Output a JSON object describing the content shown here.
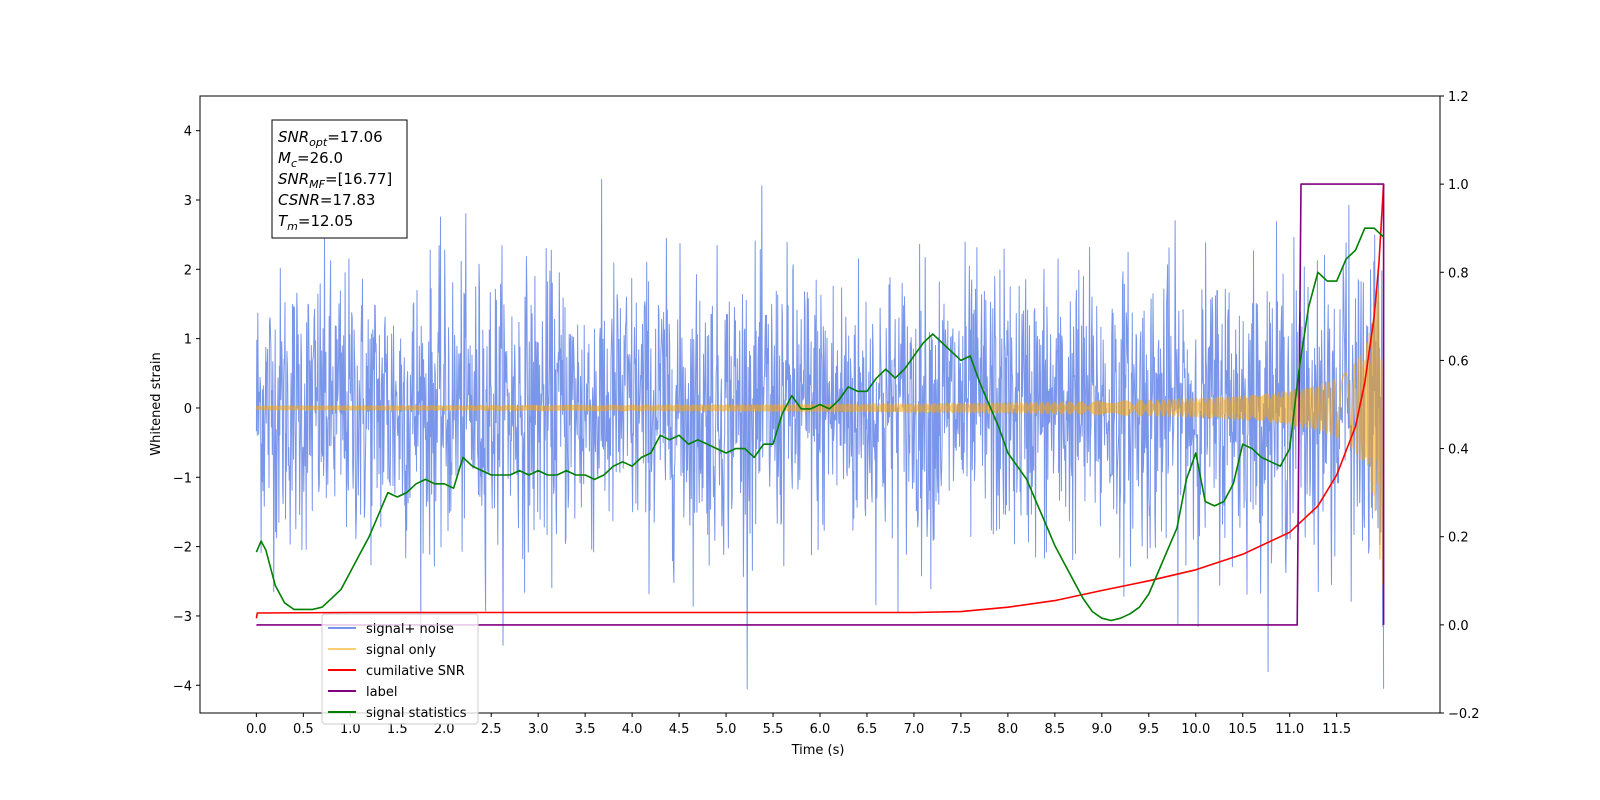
{
  "chart_data": {
    "type": "line",
    "xlabel": "Time (s)",
    "ylabel": "Whitened strain",
    "xlim": [
      -0.6,
      12.6
    ],
    "ylim": [
      -4.4,
      4.5
    ],
    "y2lim": [
      -0.2,
      1.2
    ],
    "x_ticks": [
      0.0,
      0.5,
      1.0,
      1.5,
      2.0,
      2.5,
      3.0,
      3.5,
      4.0,
      4.5,
      5.0,
      5.5,
      6.0,
      6.5,
      7.0,
      7.5,
      8.0,
      8.5,
      9.0,
      9.5,
      10.0,
      10.5,
      11.0,
      11.5
    ],
    "x_tick_labels": [
      "0.0",
      "0.5",
      "1.0",
      "1.5",
      "2.0",
      "2.5",
      "3.0",
      "3.5",
      "4.0",
      "4.5",
      "5.0",
      "5.5",
      "6.0",
      "6.5",
      "7.0",
      "7.5",
      "8.0",
      "8.5",
      "9.0",
      "9.5",
      "10.0",
      "10.5",
      "11.0",
      "11.5"
    ],
    "y_ticks": [
      -4,
      -3,
      -2,
      -1,
      0,
      1,
      2,
      3,
      4
    ],
    "y_tick_labels": [
      "−4",
      "−3",
      "−2",
      "−1",
      "0",
      "1",
      "2",
      "3",
      "4"
    ],
    "y2_ticks": [
      -0.2,
      0.0,
      0.2,
      0.4,
      0.6,
      0.8,
      1.0,
      1.2
    ],
    "y2_tick_labels": [
      "−0.2",
      "0.0",
      "0.2",
      "0.4",
      "0.6",
      "0.8",
      "1.0",
      "1.2"
    ],
    "grid": false,
    "legend_position": "lower-left",
    "annotation": {
      "lines": [
        {
          "sym": "SNR",
          "sub": "opt",
          "value": "=17.06"
        },
        {
          "sym": "M",
          "sub": "c",
          "value": "=26.0"
        },
        {
          "sym": "SNR",
          "sub": "MF",
          "value": "=[16.77]"
        },
        {
          "sym": "CSNR",
          "sub": "",
          "value": "=17.83"
        },
        {
          "sym": "T",
          "sub": "m",
          "value": "=12.05"
        }
      ]
    },
    "series": [
      {
        "name": "signal+ noise",
        "axis": "left",
        "color": "#4169e1",
        "opacity": 0.7,
        "kind": "noise",
        "t_start": 0.0,
        "t_end": 12.0,
        "sigma": 1.0
      },
      {
        "name": "signal only",
        "axis": "left",
        "color": "#ffa500",
        "opacity": 0.55,
        "kind": "chirp",
        "t_start": 0.0,
        "t_end": 12.0,
        "peak_amplitude": 3.2,
        "merger_time": 12.05
      },
      {
        "name": "cumilative SNR",
        "axis": "right",
        "color": "#ff0000",
        "x": [
          0.0,
          0.01,
          1.0,
          2.0,
          3.0,
          4.0,
          5.0,
          6.0,
          7.0,
          7.5,
          8.0,
          8.5,
          9.0,
          9.5,
          10.0,
          10.5,
          11.0,
          11.3,
          11.5,
          11.7,
          11.8,
          11.9,
          11.95,
          12.0
        ],
        "values": [
          0.015,
          0.027,
          0.028,
          0.028,
          0.028,
          0.028,
          0.028,
          0.028,
          0.028,
          0.03,
          0.04,
          0.055,
          0.078,
          0.1,
          0.125,
          0.16,
          0.21,
          0.27,
          0.34,
          0.45,
          0.55,
          0.7,
          0.82,
          1.0
        ]
      },
      {
        "name": "label",
        "axis": "right",
        "color": "#800080",
        "x": [
          0.0,
          11.08,
          11.12,
          12.0,
          12.0
        ],
        "values": [
          0.0,
          0.0,
          1.0,
          1.0,
          0.0
        ]
      },
      {
        "name": "signal statistics",
        "axis": "right",
        "color": "#008000",
        "x": [
          0.0,
          0.05,
          0.1,
          0.2,
          0.3,
          0.4,
          0.5,
          0.6,
          0.7,
          0.8,
          0.9,
          1.0,
          1.1,
          1.2,
          1.3,
          1.4,
          1.5,
          1.6,
          1.7,
          1.8,
          1.9,
          2.0,
          2.1,
          2.2,
          2.3,
          2.4,
          2.5,
          2.6,
          2.7,
          2.8,
          2.9,
          3.0,
          3.1,
          3.2,
          3.3,
          3.4,
          3.5,
          3.6,
          3.7,
          3.8,
          3.9,
          4.0,
          4.1,
          4.2,
          4.3,
          4.4,
          4.5,
          4.6,
          4.7,
          4.8,
          4.9,
          5.0,
          5.1,
          5.2,
          5.3,
          5.4,
          5.5,
          5.6,
          5.7,
          5.8,
          5.9,
          6.0,
          6.1,
          6.2,
          6.3,
          6.4,
          6.5,
          6.6,
          6.7,
          6.8,
          6.9,
          7.0,
          7.1,
          7.2,
          7.3,
          7.4,
          7.5,
          7.6,
          7.7,
          7.8,
          7.9,
          8.0,
          8.1,
          8.2,
          8.3,
          8.4,
          8.5,
          8.6,
          8.7,
          8.8,
          8.9,
          9.0,
          9.1,
          9.2,
          9.3,
          9.4,
          9.5,
          9.6,
          9.7,
          9.8,
          9.9,
          10.0,
          10.1,
          10.2,
          10.3,
          10.4,
          10.5,
          10.6,
          10.7,
          10.8,
          10.9,
          11.0,
          11.1,
          11.2,
          11.3,
          11.4,
          11.5,
          11.6,
          11.7,
          11.8,
          11.9,
          12.0
        ],
        "values": [
          0.165,
          0.19,
          0.17,
          0.09,
          0.05,
          0.035,
          0.035,
          0.035,
          0.04,
          0.06,
          0.08,
          0.12,
          0.16,
          0.2,
          0.25,
          0.3,
          0.29,
          0.3,
          0.32,
          0.33,
          0.32,
          0.32,
          0.31,
          0.38,
          0.36,
          0.35,
          0.34,
          0.34,
          0.34,
          0.35,
          0.34,
          0.35,
          0.34,
          0.34,
          0.35,
          0.34,
          0.34,
          0.33,
          0.34,
          0.36,
          0.37,
          0.36,
          0.38,
          0.39,
          0.43,
          0.42,
          0.43,
          0.41,
          0.42,
          0.41,
          0.4,
          0.39,
          0.4,
          0.4,
          0.38,
          0.41,
          0.41,
          0.48,
          0.52,
          0.49,
          0.49,
          0.5,
          0.49,
          0.51,
          0.54,
          0.53,
          0.53,
          0.56,
          0.58,
          0.56,
          0.58,
          0.61,
          0.64,
          0.66,
          0.64,
          0.62,
          0.6,
          0.61,
          0.55,
          0.5,
          0.45,
          0.39,
          0.36,
          0.33,
          0.28,
          0.23,
          0.18,
          0.14,
          0.1,
          0.06,
          0.03,
          0.015,
          0.01,
          0.015,
          0.025,
          0.04,
          0.07,
          0.12,
          0.17,
          0.22,
          0.33,
          0.39,
          0.28,
          0.27,
          0.28,
          0.32,
          0.41,
          0.4,
          0.38,
          0.37,
          0.36,
          0.4,
          0.58,
          0.72,
          0.8,
          0.78,
          0.78,
          0.83,
          0.85,
          0.9,
          0.9,
          0.88
        ]
      }
    ]
  }
}
